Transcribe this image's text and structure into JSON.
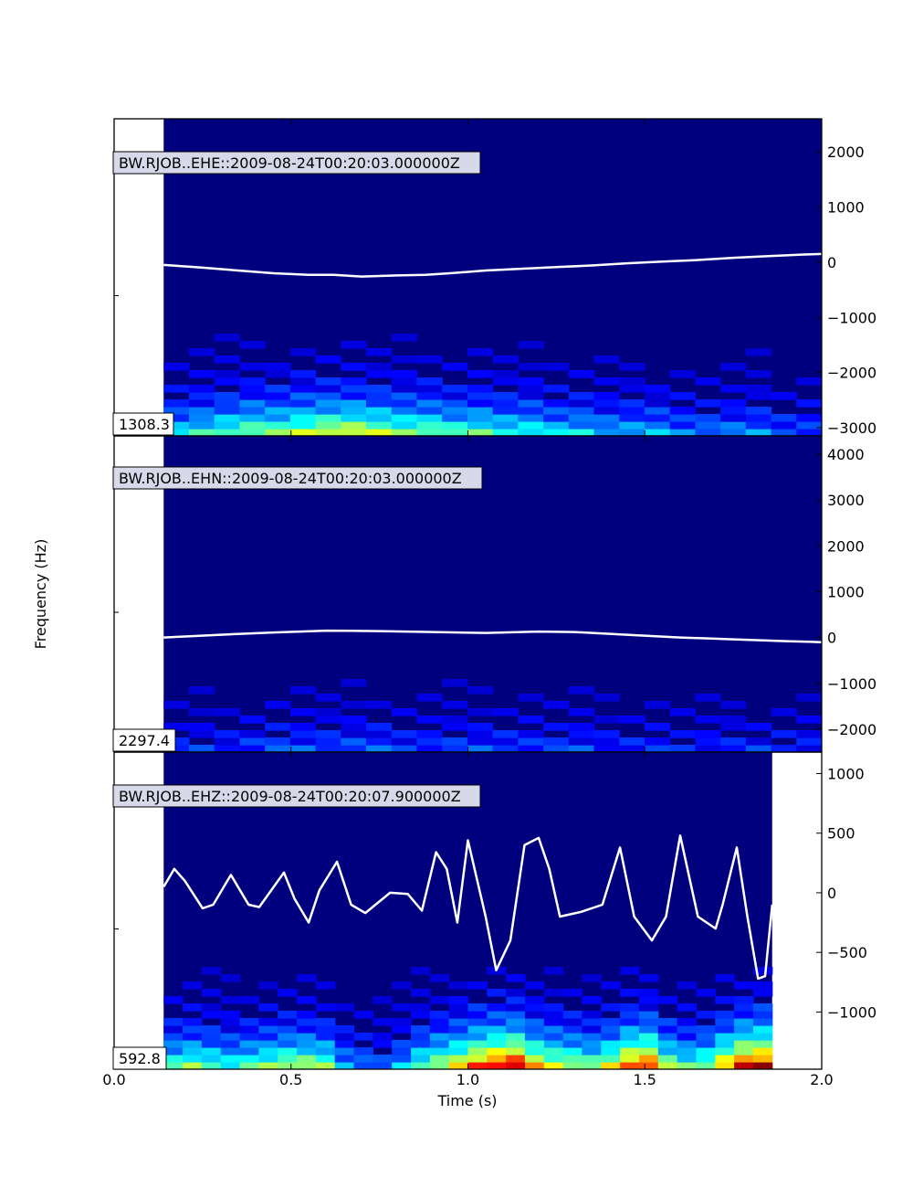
{
  "figure": {
    "xlabel": "Time (s)",
    "ylabel": "Frequency (Hz)"
  },
  "colors": {
    "background_blue": "#00007f",
    "trace": "#ffffff",
    "label_box_fill": "#d7d9ea",
    "frame": "#000000"
  },
  "chart_data": [
    {
      "type": "heatmap",
      "label": "BW.RJOB..EHE::2009-08-24T00:20:03.000000Z",
      "scale_value": "1308.3",
      "xlim": [
        0.0,
        2.0
      ],
      "ylim_right": [
        -3150,
        2600
      ],
      "right_ticks": [
        2000,
        1000,
        0,
        -1000,
        -2000,
        -3000
      ],
      "x_ticks": [
        0.0,
        0.5,
        1.0,
        1.5,
        2.0
      ],
      "data_x_range": [
        0.14,
        2.0
      ],
      "energy_profile": [
        0.35,
        0.4,
        0.45,
        0.5,
        0.5,
        0.55,
        0.6,
        0.6,
        0.55,
        0.5,
        0.5,
        0.45,
        0.45,
        0.4,
        0.4,
        0.35,
        0.35,
        0.3,
        0.3,
        0.3,
        0.25,
        0.25,
        0.25,
        0.25,
        0.2,
        0.2
      ],
      "trace": {
        "x": [
          0.14,
          0.25,
          0.35,
          0.45,
          0.55,
          0.62,
          0.7,
          0.8,
          0.88,
          0.95,
          1.05,
          1.15,
          1.25,
          1.35,
          1.45,
          1.55,
          1.65,
          1.75,
          1.85,
          1.95,
          2.0
        ],
        "y": [
          -50,
          -100,
          -150,
          -200,
          -230,
          -230,
          -260,
          -240,
          -230,
          -200,
          -150,
          -120,
          -90,
          -60,
          -20,
          10,
          40,
          80,
          110,
          140,
          150
        ]
      }
    },
    {
      "type": "heatmap",
      "label": "BW.RJOB..EHN::2009-08-24T00:20:03.000000Z",
      "scale_value": "2297.4",
      "xlim": [
        0.0,
        2.0
      ],
      "ylim_right": [
        -2500,
        4400
      ],
      "right_ticks": [
        4000,
        3000,
        2000,
        1000,
        0,
        -1000,
        -2000
      ],
      "x_ticks": [
        0.0,
        0.5,
        1.0,
        1.5,
        2.0
      ],
      "data_x_range": [
        0.14,
        2.0
      ],
      "energy_profile": [
        0.15,
        0.15,
        0.15,
        0.18,
        0.2,
        0.2,
        0.2,
        0.2,
        0.2,
        0.18,
        0.18,
        0.18,
        0.18,
        0.18,
        0.18,
        0.18,
        0.18,
        0.15,
        0.15,
        0.15,
        0.15,
        0.15,
        0.15,
        0.15,
        0.15,
        0.15
      ],
      "trace": {
        "x": [
          0.14,
          0.3,
          0.45,
          0.6,
          0.75,
          0.9,
          1.05,
          1.2,
          1.3,
          1.45,
          1.6,
          1.75,
          1.9,
          2.0
        ],
        "y": [
          0,
          60,
          110,
          150,
          140,
          120,
          100,
          130,
          120,
          60,
          0,
          -40,
          -80,
          -100
        ]
      }
    },
    {
      "type": "heatmap",
      "label": "BW.RJOB..EHZ::2009-08-24T00:20:07.900000Z",
      "scale_value": "592.8",
      "xlim": [
        0.0,
        2.0
      ],
      "ylim_right": [
        -1480,
        1180
      ],
      "right_ticks": [
        1000,
        500,
        0,
        -500,
        -1000
      ],
      "x_ticks": [
        0.0,
        0.5,
        1.0,
        1.5,
        2.0
      ],
      "data_x_range": [
        0.14,
        1.86
      ],
      "energy_profile": [
        0.45,
        0.5,
        0.45,
        0.4,
        0.45,
        0.5,
        0.55,
        0.55,
        0.5,
        0.3,
        0.25,
        0.2,
        0.3,
        0.45,
        0.55,
        0.65,
        0.8,
        0.9,
        0.95,
        0.7,
        0.6,
        0.55,
        0.5,
        0.6,
        0.8,
        0.85,
        0.55,
        0.45,
        0.5,
        0.7,
        0.9,
        0.95
      ],
      "trace": {
        "x": [
          0.14,
          0.17,
          0.2,
          0.25,
          0.28,
          0.33,
          0.38,
          0.41,
          0.48,
          0.51,
          0.55,
          0.58,
          0.63,
          0.67,
          0.71,
          0.78,
          0.83,
          0.87,
          0.91,
          0.94,
          0.97,
          1.0,
          1.05,
          1.08,
          1.12,
          1.16,
          1.2,
          1.23,
          1.26,
          1.32,
          1.38,
          1.43,
          1.47,
          1.52,
          1.56,
          1.6,
          1.65,
          1.7,
          1.72,
          1.76,
          1.79,
          1.82,
          1.84,
          1.86
        ],
        "y": [
          50,
          200,
          100,
          -130,
          -100,
          150,
          -100,
          -120,
          170,
          -50,
          -250,
          20,
          260,
          -100,
          -170,
          0,
          -10,
          -150,
          340,
          200,
          -250,
          440,
          -200,
          -650,
          -400,
          400,
          460,
          200,
          -200,
          -160,
          -100,
          380,
          -200,
          -400,
          -200,
          480,
          -200,
          -300,
          -100,
          380,
          -200,
          -720,
          -700,
          -100
        ]
      }
    }
  ]
}
